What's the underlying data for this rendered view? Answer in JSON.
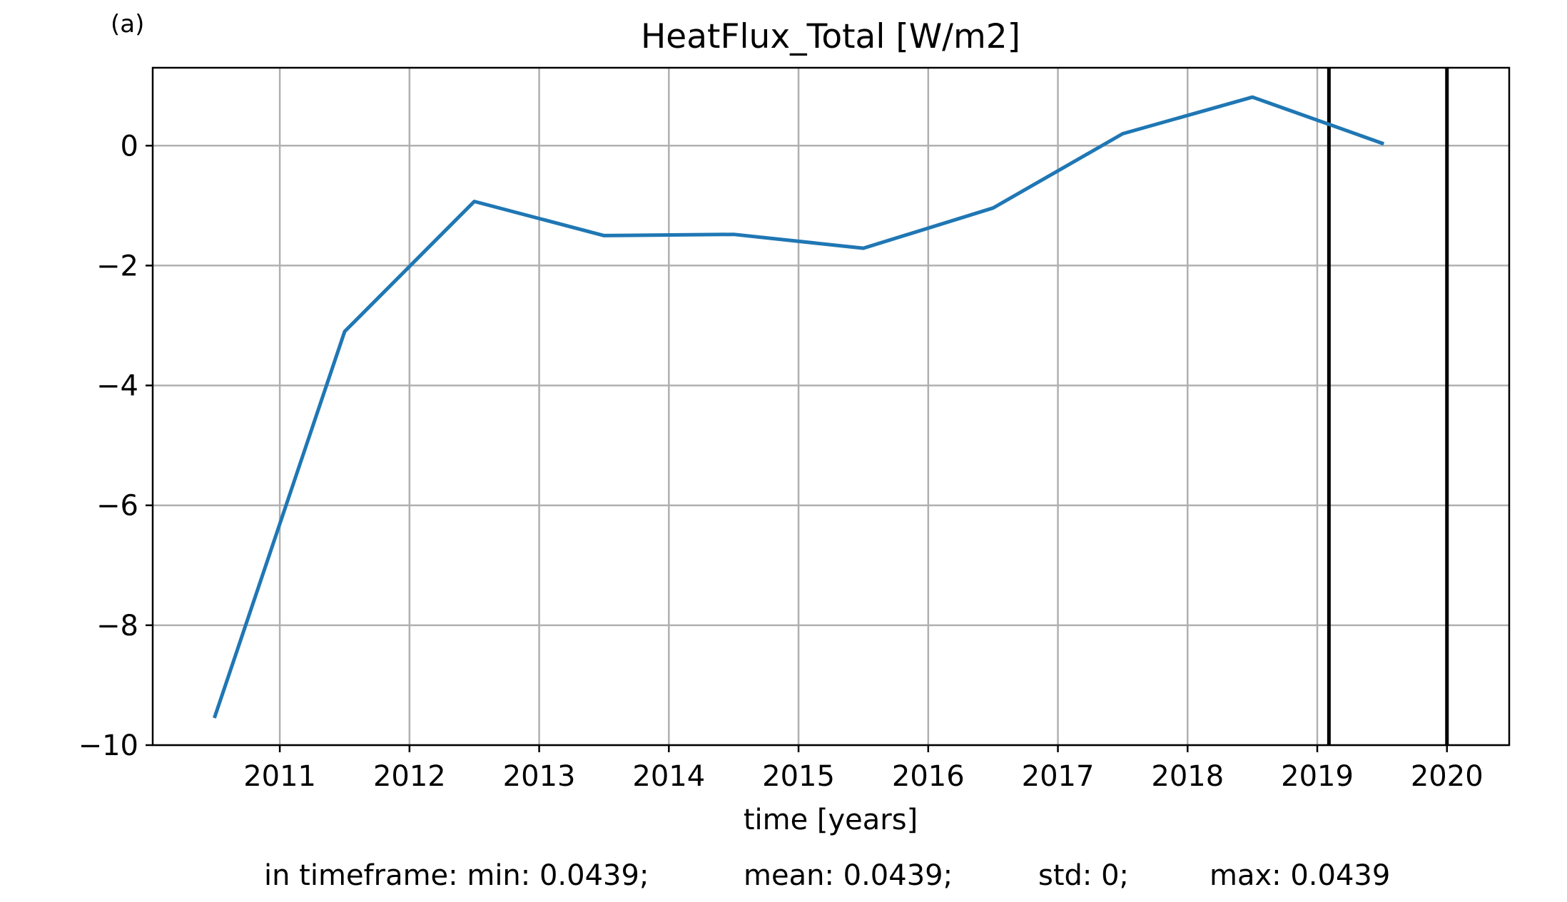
{
  "panel_label": "(a)",
  "chart_data": {
    "type": "line",
    "title": "HeatFlux_Total [W/m2]",
    "xlabel": "time [years]",
    "ylabel": "",
    "xlim": [
      2010.02,
      2020.48
    ],
    "ylim": [
      -10,
      1.3
    ],
    "x_ticks": [
      2011,
      2012,
      2013,
      2014,
      2015,
      2016,
      2017,
      2018,
      2019,
      2020
    ],
    "y_ticks": [
      0,
      -2,
      -4,
      -6,
      -8,
      -10
    ],
    "y_tick_labels": [
      "0",
      "−2",
      "−4",
      "−6",
      "−8",
      "−10"
    ],
    "grid": true,
    "series": [
      {
        "color": "#1f77b4",
        "x": [
          2010.5,
          2011.5,
          2012.5,
          2013.5,
          2014.5,
          2015.5,
          2016.5,
          2017.5,
          2018.5,
          2019.5
        ],
        "y": [
          -9.52,
          -3.1,
          -0.93,
          -1.5,
          -1.48,
          -1.71,
          -1.04,
          0.2,
          0.81,
          0.04
        ]
      }
    ],
    "vertical_lines": [
      {
        "x": 2019.09,
        "color": "#000000"
      },
      {
        "x": 2020.0,
        "color": "#000000"
      }
    ]
  },
  "stats": {
    "prefix": "in timeframe: min: 0.0439;",
    "mean": "mean: 0.0439;",
    "std": "std: 0;",
    "max": "max: 0.0439"
  }
}
